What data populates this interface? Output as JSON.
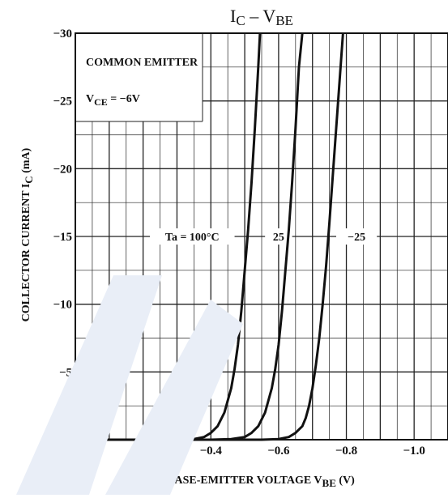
{
  "chart_data": {
    "type": "line",
    "title_main": "I",
    "title_sub1": "C",
    "title_dash": " – V",
    "title_sub2": "BE",
    "xlabel_main": "BASE-EMITTER VOLTAGE   V",
    "xlabel_sub": "BE",
    "xlabel_unit": "(V)",
    "ylabel_main": "COLLECTOR CURRENT   I",
    "ylabel_sub": "C",
    "ylabel_unit": "(mA)",
    "xlim": [
      0,
      -1.1
    ],
    "ylim": [
      0,
      -30
    ],
    "x_ticks": [
      {
        "value": 0,
        "label": "0"
      },
      {
        "value": -0.2,
        "label": "−0.2"
      },
      {
        "value": -0.4,
        "label": "−0.4"
      },
      {
        "value": -0.6,
        "label": "−0.6"
      },
      {
        "value": -0.8,
        "label": "−0.8"
      },
      {
        "value": -1.0,
        "label": "−1.0"
      }
    ],
    "y_ticks": [
      {
        "value": 0,
        "label": "0"
      },
      {
        "value": -5,
        "label": "−5"
      },
      {
        "value": -10,
        "label": "−10"
      },
      {
        "value": -15,
        "label": "−15"
      },
      {
        "value": -20,
        "label": "−20"
      },
      {
        "value": -25,
        "label": "−25"
      },
      {
        "value": -30,
        "label": "−30"
      }
    ],
    "grid": true,
    "annotations": {
      "condition_line1": "COMMON EMITTER",
      "condition_v": "V",
      "condition_sub": "CE",
      "condition_val": " = −6V"
    },
    "series": [
      {
        "name": "Ta = 100°C",
        "x": [
          0,
          -0.3,
          -0.35,
          -0.38,
          -0.4,
          -0.42,
          -0.44,
          -0.46,
          -0.47,
          -0.48,
          -0.49,
          -0.5,
          -0.51,
          -0.52,
          -0.53,
          -0.54,
          -0.545
        ],
        "y": [
          0,
          0,
          -0.05,
          -0.2,
          -0.5,
          -1.0,
          -2.0,
          -3.8,
          -5.2,
          -7.0,
          -9.5,
          -12.5,
          -15.5,
          -19.0,
          -23.0,
          -27.5,
          -30
        ]
      },
      {
        "name": "25",
        "x": [
          0,
          -0.4,
          -0.46,
          -0.5,
          -0.52,
          -0.54,
          -0.56,
          -0.58,
          -0.59,
          -0.6,
          -0.61,
          -0.62,
          -0.63,
          -0.64,
          -0.65,
          -0.66,
          -0.67
        ],
        "y": [
          0,
          0,
          -0.05,
          -0.2,
          -0.5,
          -1.0,
          -2.0,
          -3.8,
          -5.2,
          -7.0,
          -9.5,
          -12.5,
          -15.5,
          -19.0,
          -23.0,
          -27.5,
          -30
        ]
      },
      {
        "name": "−25",
        "x": [
          0,
          -0.55,
          -0.6,
          -0.63,
          -0.65,
          -0.67,
          -0.68,
          -0.69,
          -0.7,
          -0.71,
          -0.72,
          -0.73,
          -0.74,
          -0.75,
          -0.76,
          -0.77,
          -0.78,
          -0.79
        ],
        "y": [
          0,
          0,
          -0.05,
          -0.2,
          -0.5,
          -1.0,
          -1.6,
          -2.5,
          -3.8,
          -5.5,
          -7.5,
          -10.0,
          -12.8,
          -16.0,
          -19.5,
          -23.0,
          -26.5,
          -30
        ]
      }
    ],
    "series_label_text": [
      "Ta = 100°C",
      "25",
      "−25"
    ]
  }
}
